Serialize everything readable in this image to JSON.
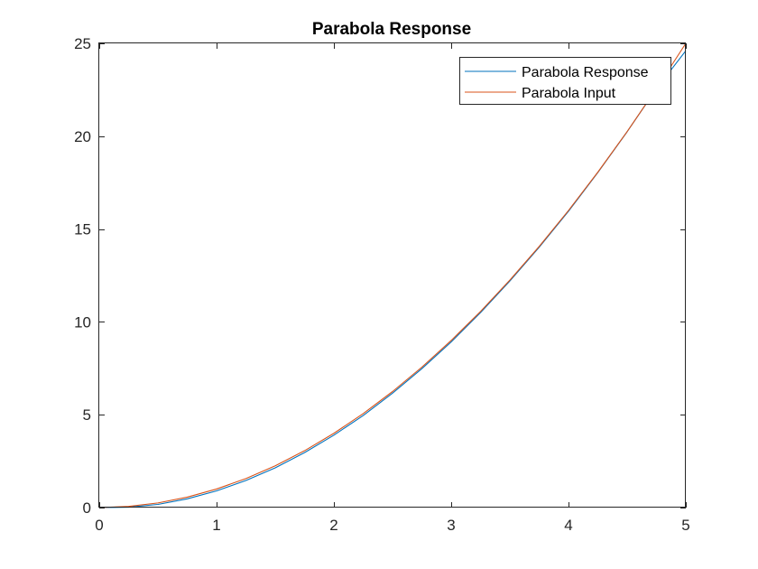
{
  "chart_data": {
    "type": "line",
    "title": "Parabola Response",
    "xlabel": "",
    "ylabel": "",
    "xlim": [
      0,
      5
    ],
    "ylim": [
      0,
      25
    ],
    "xticks": [
      0,
      1,
      2,
      3,
      4,
      5
    ],
    "yticks": [
      0,
      5,
      10,
      15,
      20,
      25
    ],
    "grid": false,
    "legend_position": "top-right",
    "series": [
      {
        "name": "Parabola Response",
        "color": "#0072bd",
        "x": [
          0,
          0.25,
          0.5,
          0.75,
          1,
          1.25,
          1.5,
          1.75,
          2,
          2.25,
          2.5,
          2.75,
          3,
          3.25,
          3.5,
          3.75,
          4,
          4.25,
          4.5,
          4.75,
          5
        ],
        "y": [
          0,
          0.02,
          0.17,
          0.47,
          0.9,
          1.46,
          2.14,
          2.96,
          3.9,
          4.96,
          6.16,
          7.48,
          8.92,
          10.5,
          12.2,
          14.02,
          15.96,
          18.04,
          20.24,
          22.56,
          24.6
        ]
      },
      {
        "name": "Parabola Input",
        "color": "#d95319",
        "x": [
          0,
          0.25,
          0.5,
          0.75,
          1,
          1.25,
          1.5,
          1.75,
          2,
          2.25,
          2.5,
          2.75,
          3,
          3.25,
          3.5,
          3.75,
          4,
          4.25,
          4.5,
          4.75,
          5
        ],
        "y": [
          0,
          0.0625,
          0.25,
          0.5625,
          1,
          1.5625,
          2.25,
          3.0625,
          4,
          5.0625,
          6.25,
          7.5625,
          9,
          10.5625,
          12.25,
          14.0625,
          16,
          18.0625,
          20.25,
          22.5625,
          25
        ]
      }
    ]
  }
}
